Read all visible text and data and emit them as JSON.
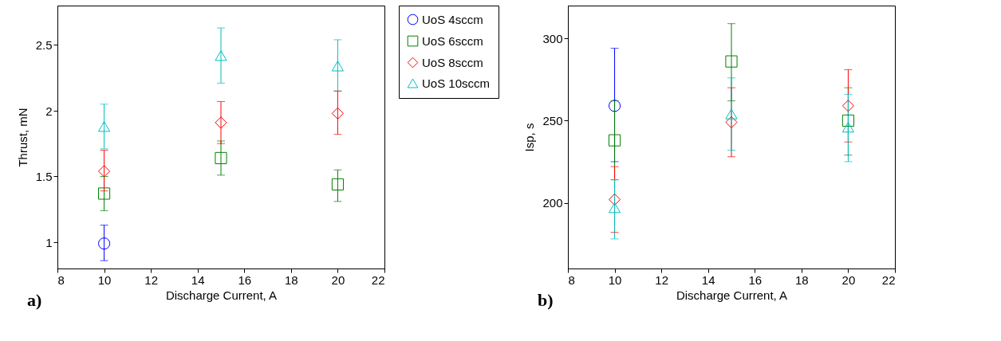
{
  "chart_data": [
    {
      "type": "scatter",
      "xlabel": "Discharge Current, A",
      "ylabel": "Thrust, mN",
      "annotations": [
        "a)"
      ],
      "x": [
        10,
        15,
        20
      ],
      "xlim": [
        8,
        22
      ],
      "xticks": [
        8,
        10,
        12,
        14,
        16,
        18,
        20,
        22
      ],
      "ylim": [
        0.8,
        2.8
      ],
      "yticks": [
        1,
        1.5,
        2,
        2.5
      ],
      "grid": false,
      "legend": "top right",
      "series": [
        {
          "name": "UoS 4sccm",
          "color": "#0000ff",
          "marker": "circle",
          "x": [
            10
          ],
          "values": [
            0.99
          ],
          "errors": [
            [
              0.86,
              1.13
            ]
          ]
        },
        {
          "name": "UoS 6sccm",
          "color": "#008000",
          "marker": "square",
          "values": [
            1.37,
            1.64,
            1.44
          ],
          "errors": [
            [
              1.24,
              1.5
            ],
            [
              1.51,
              1.77
            ],
            [
              1.31,
              1.55
            ]
          ]
        },
        {
          "name": "UoS 8sccm",
          "color": "#ff0000",
          "marker": "diamond",
          "values": [
            1.54,
            1.91,
            1.98
          ],
          "errors": [
            [
              1.39,
              1.7
            ],
            [
              1.75,
              2.07
            ],
            [
              1.82,
              2.15
            ]
          ]
        },
        {
          "name": "UoS 10sccm",
          "color": "#00bfbf",
          "marker": "triangle",
          "values": [
            1.88,
            2.42,
            2.34
          ],
          "errors": [
            [
              1.71,
              2.05
            ],
            [
              2.21,
              2.63
            ],
            [
              2.15,
              2.54
            ]
          ]
        }
      ]
    },
    {
      "type": "scatter",
      "xlabel": "Discharge Current, A",
      "ylabel": "Isp, s",
      "annotations": [
        "b)"
      ],
      "x": [
        10,
        15,
        20
      ],
      "xlim": [
        8,
        22
      ],
      "xticks": [
        8,
        10,
        12,
        14,
        16,
        18,
        20,
        22
      ],
      "ylim": [
        160,
        320
      ],
      "yticks": [
        200,
        250,
        300
      ],
      "grid": false,
      "series": [
        {
          "color": "#0000ff",
          "marker": "circle",
          "x": [
            10
          ],
          "values": [
            259
          ],
          "errors": [
            [
              225,
              294
            ]
          ]
        },
        {
          "color": "#008000",
          "marker": "square",
          "values": [
            238,
            286,
            250
          ],
          "errors": [
            [
              214,
              262
            ],
            [
              262,
              309
            ],
            [
              229,
              270
            ]
          ]
        },
        {
          "color": "#ff0000",
          "marker": "diamond",
          "values": [
            202,
            249,
            259
          ],
          "errors": [
            [
              182,
              222
            ],
            [
              228,
              270
            ],
            [
              237,
              281
            ]
          ]
        },
        {
          "color": "#00bfbf",
          "marker": "triangle",
          "values": [
            197,
            254,
            246
          ],
          "errors": [
            [
              178,
              214
            ],
            [
              232,
              276
            ],
            [
              225,
              266
            ]
          ]
        }
      ]
    }
  ]
}
